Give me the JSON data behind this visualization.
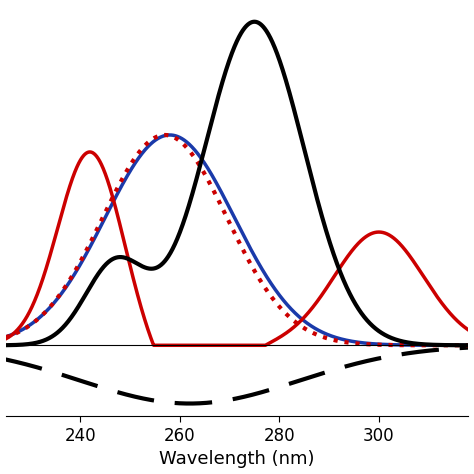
{
  "xlabel": "Wavelength (nm)",
  "xlim": [
    225,
    318
  ],
  "ylim": [
    -0.22,
    1.05
  ],
  "x_ticks": [
    240,
    260,
    280,
    300
  ],
  "x_tick_labels": [
    "240",
    "260",
    "280",
    "300"
  ],
  "curves": {
    "black_solid": {
      "color": "#000000",
      "lw": 3.0
    },
    "red_solid": {
      "color": "#cc0000",
      "lw": 2.5
    },
    "blue_solid": {
      "color": "#1a3aaa",
      "lw": 2.5
    },
    "red_dotted": {
      "color": "#cc0000",
      "lw": 3.0
    },
    "black_dashed": {
      "color": "#000000",
      "lw": 3.0
    }
  }
}
